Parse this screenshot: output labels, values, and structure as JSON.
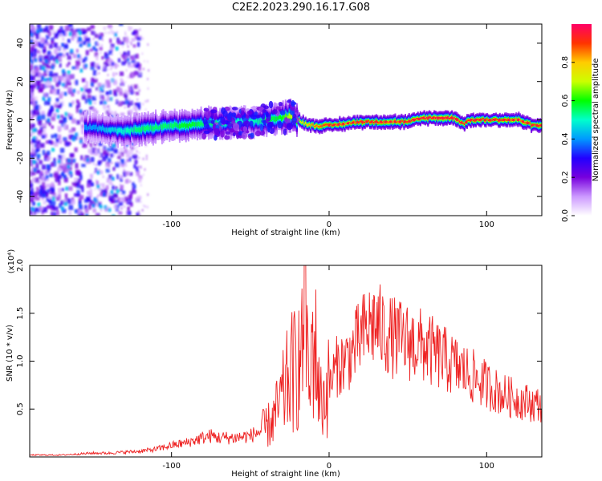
{
  "title": "C2E2.2023.290.16.17.G08",
  "chart_data": [
    {
      "type": "heatmap",
      "title": "C2E2.2023.290.16.17.G08",
      "xlabel": "Height of straight line (km)",
      "ylabel": "Frequency (Hz)",
      "xlim": [
        -190,
        135
      ],
      "ylim": [
        -50,
        50
      ],
      "x_ticks": [
        -100,
        0,
        100
      ],
      "x_tick_labels": [
        "-100",
        "0",
        "100"
      ],
      "y_ticks": [
        -40,
        -20,
        0,
        20,
        40
      ],
      "y_tick_labels": [
        "-40",
        "-20",
        "0",
        "20",
        "40"
      ],
      "colorbar": {
        "label": "Normalized spectral amplitude",
        "range": [
          0,
          1
        ],
        "ticks": [
          0.0,
          0.2,
          0.4,
          0.6,
          0.8
        ],
        "tick_labels": [
          "0.0",
          "0.2",
          "0.4",
          "0.6",
          "0.8"
        ],
        "colormap": [
          "#ffffff",
          "#cc99ff",
          "#7700dd",
          "#2200ff",
          "#0099ff",
          "#00ffcc",
          "#00ff00",
          "#ccff00",
          "#ffcc00",
          "#ff3300",
          "#ff0066"
        ]
      },
      "ridge": {
        "x": [
          -150,
          -140,
          -130,
          -120,
          -110,
          -100,
          -90,
          -80,
          -70,
          -60,
          -50,
          -40,
          -30,
          -25,
          -20,
          -15,
          -10,
          0,
          10,
          20,
          30,
          40,
          50,
          60,
          70,
          80,
          85,
          90,
          100,
          110,
          120,
          130,
          135
        ],
        "frequency": [
          -4,
          -5,
          -6,
          -5,
          -4,
          -3,
          -3,
          -2,
          -2,
          -1,
          -1,
          0,
          1,
          2,
          0,
          -2,
          -3,
          -3,
          -2,
          -1,
          -1,
          -1,
          -1,
          1,
          1,
          1,
          -2,
          0,
          0,
          0,
          0,
          -3,
          -3
        ],
        "peak_amplitude": [
          0.4,
          0.45,
          0.5,
          0.55,
          0.55,
          0.55,
          0.6,
          0.55,
          0.55,
          0.5,
          0.5,
          0.55,
          0.6,
          0.7,
          0.75,
          0.8,
          0.85,
          0.9,
          0.85,
          0.9,
          0.9,
          0.85,
          0.9,
          0.95,
          0.95,
          0.95,
          0.9,
          0.9,
          0.9,
          0.9,
          0.85,
          0.9,
          0.9
        ]
      },
      "grid": false
    },
    {
      "type": "line",
      "xlabel": "Height of straight line (km)",
      "ylabel": "SNR (10 * v/v)",
      "y_scale_label": "(x10⁴)",
      "xlim": [
        -190,
        135
      ],
      "ylim": [
        0,
        2.0
      ],
      "x_ticks": [
        -100,
        0,
        100
      ],
      "x_tick_labels": [
        "-100",
        "0",
        "100"
      ],
      "y_ticks": [
        0.5,
        1.0,
        1.5,
        2.0
      ],
      "y_tick_labels": [
        "0.5",
        "1.0",
        "1.5",
        "2.0"
      ],
      "grid": false,
      "series": [
        {
          "color": "#ee2222",
          "x": [
            -190,
            -180,
            -170,
            -160,
            -150,
            -140,
            -130,
            -120,
            -110,
            -100,
            -90,
            -80,
            -75,
            -70,
            -60,
            -50,
            -40,
            -35,
            -30,
            -25,
            -20,
            -17,
            -15,
            -13,
            -10,
            -5,
            0,
            5,
            10,
            15,
            20,
            25,
            28,
            30,
            35,
            40,
            50,
            60,
            70,
            80,
            90,
            100,
            110,
            120,
            130,
            135
          ],
          "y": [
            0.02,
            0.02,
            0.02,
            0.03,
            0.04,
            0.04,
            0.05,
            0.06,
            0.08,
            0.12,
            0.15,
            0.2,
            0.22,
            0.2,
            0.2,
            0.22,
            0.3,
            0.4,
            0.6,
            0.85,
            0.95,
            1.05,
            2.0,
            0.5,
            1.3,
            0.55,
            0.75,
            0.95,
            1.0,
            1.1,
            1.25,
            1.35,
            1.4,
            1.38,
            1.3,
            1.25,
            1.2,
            1.15,
            1.05,
            0.95,
            0.85,
            0.75,
            0.65,
            0.6,
            0.55,
            0.55
          ]
        }
      ]
    }
  ]
}
